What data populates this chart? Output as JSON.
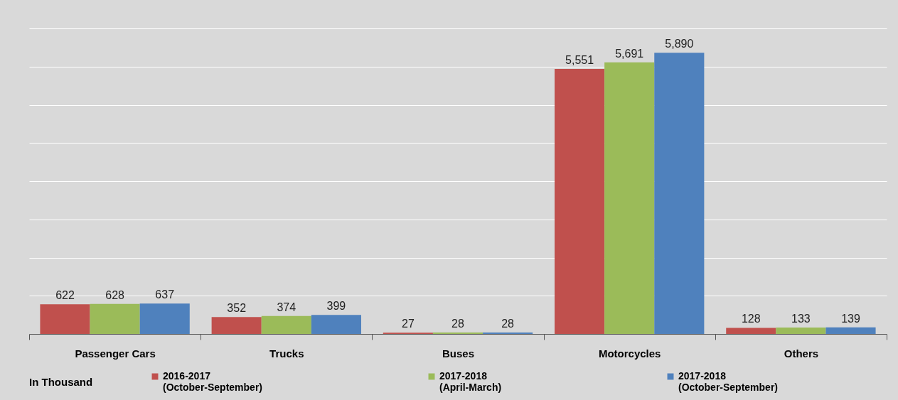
{
  "chart_data": {
    "type": "bar",
    "categories": [
      "Passenger Cars",
      "Trucks",
      "Buses",
      "Motorcycles",
      "Others"
    ],
    "series": [
      {
        "name": "2016-2017\n(October-September)",
        "color": "#c0504d",
        "values": [
          622,
          352,
          27,
          5551,
          128
        ],
        "value_labels": [
          "622",
          "352",
          "27",
          "5,551",
          "128"
        ]
      },
      {
        "name": "2017-2018\n(April-March)",
        "color": "#9bbb59",
        "values": [
          628,
          374,
          28,
          5691,
          133
        ],
        "value_labels": [
          "628",
          "374",
          "28",
          "5,691",
          "133"
        ]
      },
      {
        "name": "2017-2018\n(October-September)",
        "color": "#4f81bd",
        "values": [
          637,
          399,
          28,
          5890,
          139
        ],
        "value_labels": [
          "637",
          "399",
          "28",
          "5,890",
          "139"
        ]
      }
    ],
    "legend_title": "In Thousand",
    "legend": "bottom",
    "grid": "y",
    "tick_labels": "x",
    "ylim": [
      0,
      6400
    ],
    "yticks": [
      {
        "value": 0,
        "label": null
      },
      {
        "value": 800,
        "label": null
      },
      {
        "value": 1600,
        "label": null
      },
      {
        "value": 2400,
        "label": null
      },
      {
        "value": 3200,
        "label": null
      },
      {
        "value": 4000,
        "label": null
      },
      {
        "value": 4800,
        "label": null
      },
      {
        "value": 5600,
        "label": null
      },
      {
        "value": 6400,
        "label": null
      }
    ]
  }
}
